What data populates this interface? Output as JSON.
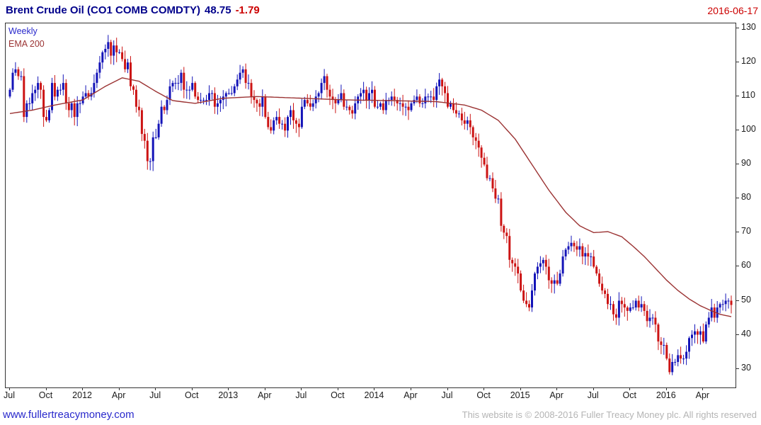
{
  "header": {
    "title": "Brent Crude Oil  (CO1 COMB COMDTY)",
    "last": "48.75",
    "change": "-1.79",
    "date": "2016-06-17"
  },
  "legend": {
    "timeframe": "Weekly",
    "ema": "EMA 200"
  },
  "footer": {
    "site": "www.fullertreacymoney.com",
    "copyright": "This website is © 2008-2016 Fuller Treacy Money plc. All rights reserved"
  },
  "chart_data": {
    "type": "candlestick",
    "title": "Brent Crude Oil (CO1 COMB COMDTY)",
    "timeframe": "weekly",
    "overlay": "EMA 200",
    "ylim": [
      24.5,
      131.5
    ],
    "y_ticks": [
      30,
      40,
      50,
      60,
      70,
      80,
      90,
      100,
      110,
      120,
      130
    ],
    "x_ticks": [
      {
        "label": "Jul",
        "week": 0
      },
      {
        "label": "Oct",
        "week": 13
      },
      {
        "label": "2012",
        "week": 26
      },
      {
        "label": "Apr",
        "week": 39
      },
      {
        "label": "Jul",
        "week": 52
      },
      {
        "label": "Oct",
        "week": 65
      },
      {
        "label": "2013",
        "week": 78
      },
      {
        "label": "Apr",
        "week": 91
      },
      {
        "label": "Jul",
        "week": 104
      },
      {
        "label": "Oct",
        "week": 117
      },
      {
        "label": "2014",
        "week": 130
      },
      {
        "label": "Apr",
        "week": 143
      },
      {
        "label": "Jul",
        "week": 156
      },
      {
        "label": "Oct",
        "week": 169
      },
      {
        "label": "2015",
        "week": 182
      },
      {
        "label": "Apr",
        "week": 195
      },
      {
        "label": "Jul",
        "week": 208
      },
      {
        "label": "Oct",
        "week": 221
      },
      {
        "label": "2016",
        "week": 234
      },
      {
        "label": "Apr",
        "week": 247
      }
    ],
    "first_open": 110,
    "weekly_closes": [
      112,
      117,
      118,
      116,
      116,
      104,
      108,
      108,
      111,
      112,
      114,
      112,
      104,
      103,
      106,
      114,
      110,
      112,
      112,
      114,
      108,
      106,
      108,
      104,
      108,
      108,
      110,
      111,
      110,
      111,
      114,
      117,
      120,
      123,
      124,
      126,
      122,
      125,
      123,
      123,
      121,
      118,
      120,
      113,
      112,
      107,
      106,
      99,
      97,
      91,
      91,
      98,
      98,
      102,
      107,
      106,
      109,
      113,
      114,
      114,
      114,
      117,
      112,
      112,
      112,
      114,
      110,
      109,
      109,
      109,
      109,
      111,
      111,
      107,
      108,
      109,
      110,
      111,
      111,
      111,
      113,
      115,
      117,
      118,
      114,
      114,
      110,
      109,
      108,
      107,
      110,
      104,
      101,
      100,
      103,
      104,
      102,
      102,
      100,
      104,
      106,
      103,
      102,
      101,
      107,
      109,
      108,
      107,
      108,
      110,
      111,
      114,
      116,
      112,
      110,
      109,
      108,
      109,
      111,
      107,
      107,
      106,
      105,
      108,
      110,
      111,
      112,
      109,
      111,
      112,
      107,
      107,
      108,
      106,
      109,
      109,
      110,
      109,
      108,
      108,
      107,
      107,
      106,
      108,
      109,
      110,
      108,
      108,
      110,
      110,
      110,
      109,
      113,
      115,
      113,
      111,
      107,
      108,
      106,
      105,
      105,
      103,
      102,
      103,
      101,
      98,
      97,
      95,
      92,
      90,
      86,
      86,
      83,
      80,
      80,
      72,
      70,
      69,
      62,
      61,
      60,
      58,
      53,
      50,
      49,
      48,
      53,
      58,
      60,
      61,
      62,
      60,
      56,
      55,
      56,
      55,
      58,
      63,
      65,
      66,
      67,
      66,
      65,
      66,
      63,
      64,
      63,
      63,
      60,
      58,
      55,
      53,
      52,
      49,
      49,
      46,
      45,
      50,
      49,
      48,
      47,
      48,
      48,
      50,
      48,
      49,
      47,
      44,
      45,
      45,
      43,
      38,
      37,
      37,
      33,
      29,
      32,
      32,
      34,
      33,
      33,
      35,
      39,
      40,
      41,
      40,
      41,
      38,
      43,
      45,
      48,
      45,
      48,
      49,
      49,
      50,
      50,
      48.75
    ],
    "ema200_anchors": [
      [
        0,
        105
      ],
      [
        8,
        106
      ],
      [
        16,
        107.5
      ],
      [
        26,
        109
      ],
      [
        34,
        113
      ],
      [
        40,
        115.5
      ],
      [
        46,
        114.5
      ],
      [
        52,
        111.5
      ],
      [
        58,
        108.8
      ],
      [
        66,
        108
      ],
      [
        76,
        109.5
      ],
      [
        88,
        110
      ],
      [
        104,
        109.5
      ],
      [
        120,
        109
      ],
      [
        136,
        108.8
      ],
      [
        152,
        108.5
      ],
      [
        162,
        107.5
      ],
      [
        168,
        106
      ],
      [
        174,
        103
      ],
      [
        180,
        97.5
      ],
      [
        186,
        90
      ],
      [
        192,
        82.5
      ],
      [
        198,
        76
      ],
      [
        203,
        72
      ],
      [
        208,
        70
      ],
      [
        213,
        70.3
      ],
      [
        218,
        68.8
      ],
      [
        222,
        66
      ],
      [
        226,
        63
      ],
      [
        230,
        59.5
      ],
      [
        234,
        56
      ],
      [
        238,
        53
      ],
      [
        242,
        50.5
      ],
      [
        246,
        48.5
      ],
      [
        250,
        47
      ],
      [
        253,
        46
      ],
      [
        257,
        45.3
      ]
    ],
    "colors": {
      "up": "#1414b8",
      "down": "#cc1414",
      "ema": "#9b3333",
      "axis_text": "#1a1a1a",
      "title_navy": "#00008b",
      "accent_red": "#cc0000",
      "link_blue": "#2929cc",
      "muted_gray": "#b4b4b4"
    }
  }
}
